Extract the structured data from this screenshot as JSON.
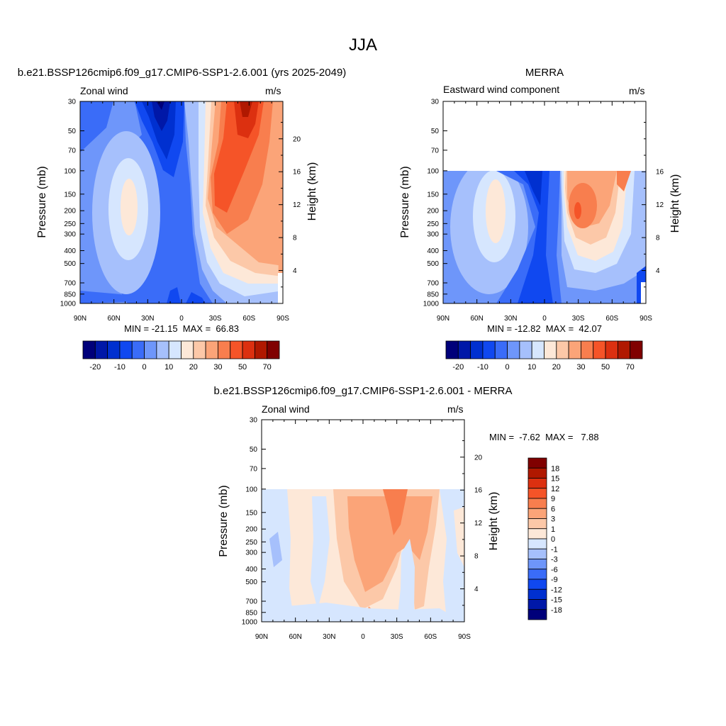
{
  "page": {
    "title": "JJA"
  },
  "palette": {
    "colors": [
      "#00007a",
      "#0018a8",
      "#0030d0",
      "#1048f0",
      "#3a6cf8",
      "#6e96fa",
      "#a6c0fc",
      "#d6e6fe",
      "#fde8d8",
      "#fcc8a8",
      "#fba478",
      "#f87e4e",
      "#f55428",
      "#dc3010",
      "#b01800",
      "#800000"
    ]
  },
  "chart_data": [
    {
      "type": "heatmap",
      "title": "b.e21.BSSP126cmip6.f09_g17.CMIP6-SSP1-2.6.001 (yrs 2025-2049)",
      "left_label": "Zonal wind",
      "right_label": "m/s",
      "xlabel": "",
      "ylabel": "Pressure (mb)",
      "y2label": "Height (km)",
      "x_ticks": [
        "90N",
        "60N",
        "30N",
        "0",
        "30S",
        "60S",
        "90S"
      ],
      "y_ticks": [
        30,
        50,
        70,
        100,
        150,
        200,
        250,
        300,
        400,
        500,
        700,
        850,
        1000
      ],
      "y2_ticks": [
        4,
        8,
        12,
        16,
        20
      ],
      "ylim": [
        1000,
        30
      ],
      "y_scale": "log",
      "min_max_text": "MIN = -21.15  MAX =  66.83",
      "colorbar": {
        "orientation": "horizontal",
        "labels": [
          "-20",
          "-10",
          "0",
          "10",
          "20",
          "30",
          "50",
          "70"
        ]
      }
    },
    {
      "type": "heatmap",
      "title": "MERRA",
      "left_label": "Eastward wind component",
      "right_label": "m/s",
      "xlabel": "",
      "ylabel": "Pressure (mb)",
      "y2label": "Height (km)",
      "x_ticks": [
        "90N",
        "60N",
        "30N",
        "0",
        "30S",
        "60S",
        "90S"
      ],
      "y_ticks": [
        30,
        50,
        70,
        100,
        150,
        200,
        250,
        300,
        400,
        500,
        700,
        850,
        1000
      ],
      "y2_ticks": [
        4,
        8,
        12,
        16
      ],
      "ylim": [
        1000,
        30
      ],
      "y_scale": "log",
      "data_top_mb": 100,
      "min_max_text": "MIN = -12.82  MAX =  42.07",
      "colorbar": {
        "orientation": "horizontal",
        "labels": [
          "-20",
          "-10",
          "0",
          "10",
          "20",
          "30",
          "50",
          "70"
        ]
      }
    },
    {
      "type": "heatmap",
      "title": "b.e21.BSSP126cmip6.f09_g17.CMIP6-SSP1-2.6.001 - MERRA",
      "left_label": "Zonal wind",
      "right_label": "m/s",
      "xlabel": "",
      "ylabel": "Pressure (mb)",
      "y2label": "Height (km)",
      "x_ticks": [
        "90N",
        "60N",
        "30N",
        "0",
        "30S",
        "60S",
        "90S"
      ],
      "y_ticks": [
        30,
        50,
        70,
        100,
        150,
        200,
        250,
        300,
        400,
        500,
        700,
        850,
        1000
      ],
      "y2_ticks": [
        4,
        8,
        12,
        16,
        20
      ],
      "ylim": [
        1000,
        30
      ],
      "y_scale": "log",
      "data_top_mb": 100,
      "min_max_text": "MIN =  -7.62  MAX =   7.88",
      "colorbar": {
        "orientation": "vertical",
        "labels": [
          "18",
          "15",
          "12",
          "9",
          "6",
          "3",
          "1",
          "0",
          "-1",
          "-3",
          "-6",
          "-9",
          "-12",
          "-15",
          "-18"
        ]
      }
    }
  ]
}
